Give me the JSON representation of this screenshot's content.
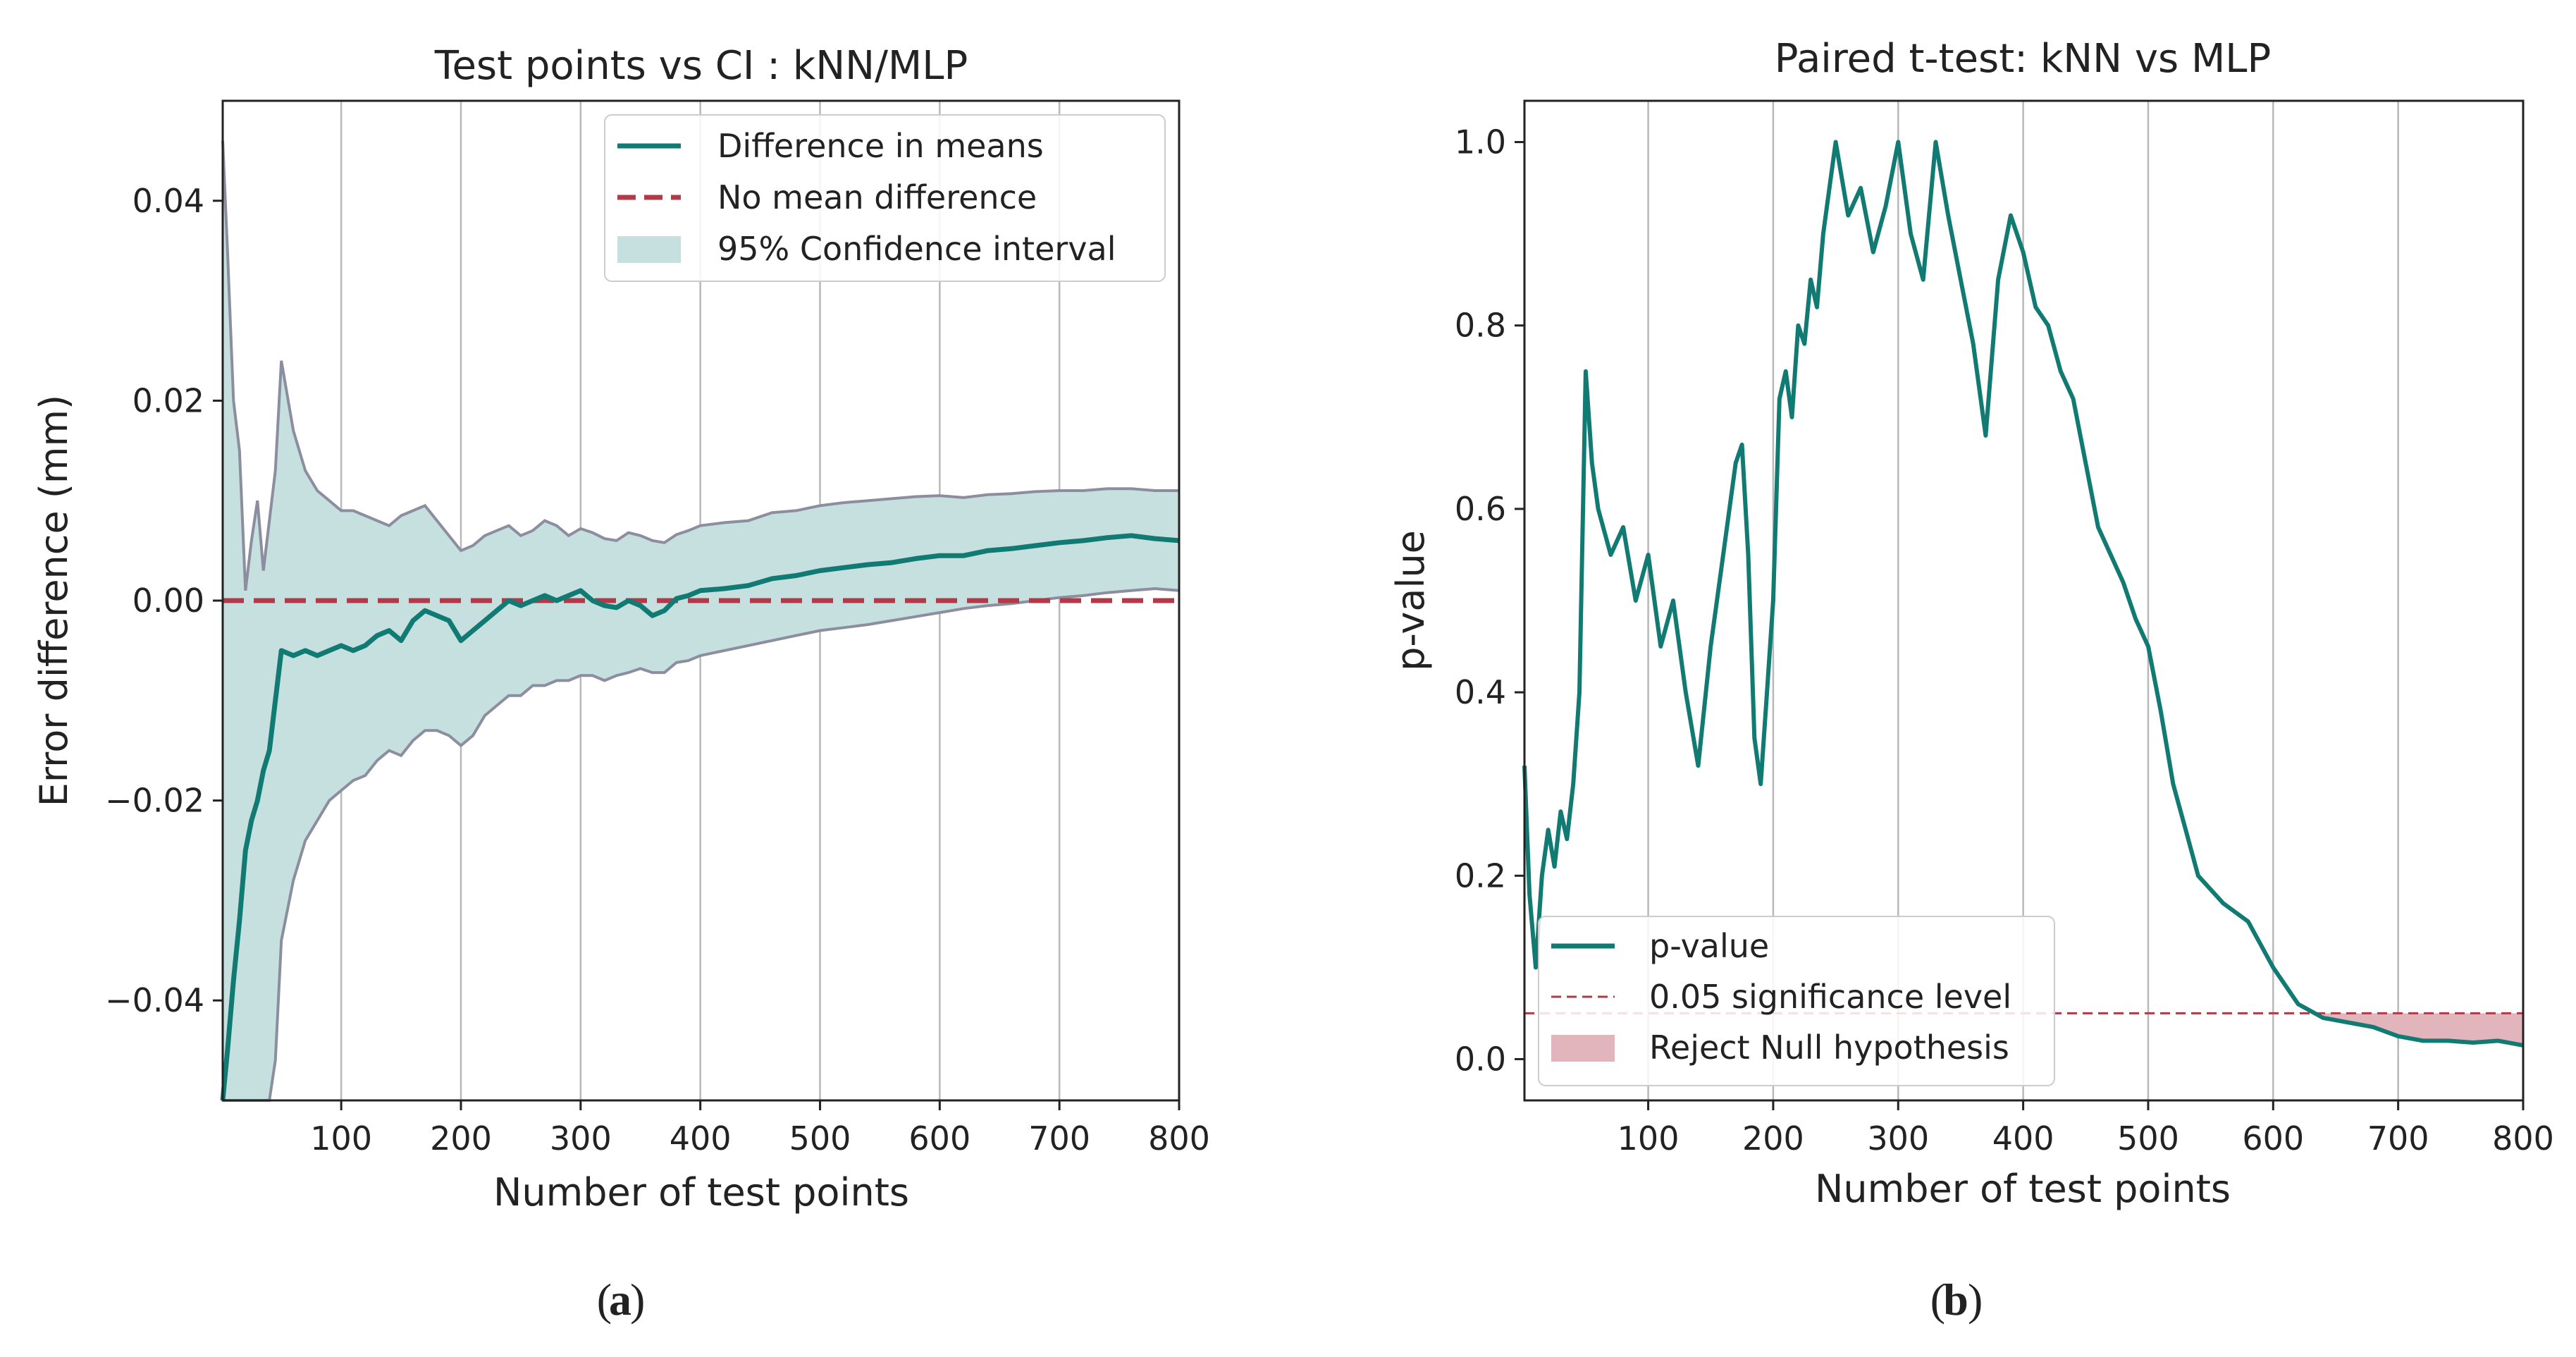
{
  "chart_data": [
    {
      "type": "line",
      "panel_label": "a",
      "title": "Test points vs CI : kNN/MLP",
      "xlabel": "Number of test points",
      "ylabel": "Error difference (mm)",
      "xlim": [
        1,
        800
      ],
      "ylim": [
        -0.05,
        0.05
      ],
      "x_ticks": [
        100,
        200,
        300,
        400,
        500,
        600,
        700,
        800
      ],
      "x_tick_labels": [
        "100",
        "200",
        "300",
        "400",
        "500",
        "600",
        "700",
        "800"
      ],
      "y_ticks": [
        -0.04,
        -0.02,
        0.0,
        0.02,
        0.04
      ],
      "y_tick_labels": [
        "−0.04",
        "−0.02",
        "0.00",
        "0.02",
        "0.04"
      ],
      "grid": "vertical",
      "legend_position": "top-right",
      "legend": [
        "Difference in means",
        "No mean difference",
        "95% Confidence interval"
      ],
      "colors": {
        "mean": "#107a73",
        "zero": "#b03a48",
        "ci_fill": "#c6e0e0",
        "ci_edge": "#8c8ea0"
      },
      "series": [
        {
          "name": "Difference in means",
          "x": [
            1,
            5,
            10,
            15,
            20,
            25,
            30,
            35,
            40,
            45,
            50,
            60,
            70,
            80,
            90,
            100,
            110,
            120,
            130,
            140,
            150,
            160,
            170,
            180,
            190,
            200,
            210,
            220,
            230,
            240,
            250,
            260,
            270,
            280,
            290,
            300,
            310,
            320,
            330,
            340,
            350,
            360,
            370,
            380,
            390,
            400,
            420,
            440,
            460,
            480,
            500,
            520,
            540,
            560,
            580,
            600,
            620,
            640,
            660,
            680,
            700,
            720,
            740,
            760,
            780,
            800
          ],
          "values": [
            -0.05,
            -0.045,
            -0.038,
            -0.032,
            -0.025,
            -0.022,
            -0.02,
            -0.017,
            -0.015,
            -0.01,
            -0.005,
            -0.0055,
            -0.005,
            -0.0055,
            -0.005,
            -0.0045,
            -0.005,
            -0.0045,
            -0.0035,
            -0.003,
            -0.004,
            -0.002,
            -0.001,
            -0.0015,
            -0.002,
            -0.004,
            -0.003,
            -0.002,
            -0.001,
            0.0,
            -0.0005,
            0.0,
            0.0005,
            0.0,
            0.0005,
            0.001,
            0.0,
            -0.0005,
            -0.0007,
            0.0,
            -0.0005,
            -0.0015,
            -0.001,
            0.0002,
            0.0005,
            0.001,
            0.0012,
            0.0015,
            0.0022,
            0.0025,
            0.003,
            0.0033,
            0.0036,
            0.0038,
            0.0042,
            0.0045,
            0.0045,
            0.005,
            0.0052,
            0.0055,
            0.0058,
            0.006,
            0.0063,
            0.0065,
            0.0062,
            0.006
          ]
        },
        {
          "name": "No mean difference",
          "value": 0.0
        },
        {
          "name": "95% Confidence interval",
          "x": [
            1,
            5,
            10,
            15,
            20,
            25,
            30,
            35,
            40,
            45,
            50,
            60,
            70,
            80,
            90,
            100,
            110,
            120,
            130,
            140,
            150,
            160,
            170,
            180,
            190,
            200,
            210,
            220,
            230,
            240,
            250,
            260,
            270,
            280,
            290,
            300,
            310,
            320,
            330,
            340,
            350,
            360,
            370,
            380,
            390,
            400,
            420,
            440,
            460,
            480,
            500,
            520,
            540,
            560,
            580,
            600,
            620,
            640,
            660,
            680,
            700,
            720,
            740,
            760,
            780,
            800
          ],
          "upper": [
            0.046,
            0.035,
            0.02,
            0.015,
            0.001,
            0.006,
            0.01,
            0.003,
            0.008,
            0.013,
            0.024,
            0.017,
            0.013,
            0.011,
            0.01,
            0.009,
            0.009,
            0.0085,
            0.008,
            0.0075,
            0.0085,
            0.009,
            0.0095,
            0.008,
            0.0065,
            0.005,
            0.0055,
            0.0065,
            0.007,
            0.0075,
            0.0065,
            0.007,
            0.008,
            0.0075,
            0.0065,
            0.0072,
            0.0068,
            0.0062,
            0.006,
            0.0068,
            0.0065,
            0.006,
            0.0058,
            0.0066,
            0.007,
            0.0075,
            0.0078,
            0.008,
            0.0088,
            0.009,
            0.0095,
            0.0098,
            0.01,
            0.0102,
            0.0104,
            0.0105,
            0.0103,
            0.0106,
            0.0107,
            0.0109,
            0.011,
            0.011,
            0.0112,
            0.0112,
            0.011,
            0.011
          ],
          "lower": [
            -0.05,
            -0.05,
            -0.05,
            -0.05,
            -0.05,
            -0.05,
            -0.05,
            -0.05,
            -0.05,
            -0.046,
            -0.034,
            -0.028,
            -0.024,
            -0.022,
            -0.02,
            -0.019,
            -0.018,
            -0.0175,
            -0.016,
            -0.015,
            -0.0155,
            -0.014,
            -0.013,
            -0.013,
            -0.0135,
            -0.0145,
            -0.0135,
            -0.0115,
            -0.0105,
            -0.0095,
            -0.0095,
            -0.0085,
            -0.0085,
            -0.008,
            -0.008,
            -0.0075,
            -0.0075,
            -0.008,
            -0.0075,
            -0.0072,
            -0.0068,
            -0.0072,
            -0.0072,
            -0.0062,
            -0.006,
            -0.0055,
            -0.005,
            -0.0045,
            -0.004,
            -0.0035,
            -0.003,
            -0.0027,
            -0.0024,
            -0.002,
            -0.0016,
            -0.0012,
            -0.0008,
            -0.0005,
            -0.0003,
            0.0,
            0.0003,
            0.0005,
            0.0008,
            0.001,
            0.0012,
            0.001
          ]
        }
      ]
    },
    {
      "type": "line",
      "panel_label": "b",
      "title": "Paired t-test: kNN vs MLP",
      "xlabel": "Number of test points",
      "ylabel": "p-value",
      "xlim": [
        1,
        800
      ],
      "ylim": [
        -0.045,
        1.045
      ],
      "x_ticks": [
        100,
        200,
        300,
        400,
        500,
        600,
        700,
        800
      ],
      "x_tick_labels": [
        "100",
        "200",
        "300",
        "400",
        "500",
        "600",
        "700",
        "800"
      ],
      "y_ticks": [
        0.0,
        0.2,
        0.4,
        0.6,
        0.8,
        1.0
      ],
      "y_tick_labels": [
        "0.0",
        "0.2",
        "0.4",
        "0.6",
        "0.8",
        "1.0"
      ],
      "grid": "vertical",
      "legend_position": "bottom-left",
      "legend": [
        "p-value",
        "0.05 significance level",
        "Reject Null hypothesis"
      ],
      "colors": {
        "pvalue": "#107a73",
        "threshold": "#b03a48",
        "reject_fill": "#e2b4bb"
      },
      "significance_level": 0.05,
      "series": [
        {
          "name": "p-value",
          "x": [
            1,
            5,
            10,
            15,
            20,
            25,
            30,
            35,
            40,
            45,
            50,
            55,
            60,
            70,
            80,
            90,
            100,
            110,
            120,
            130,
            140,
            150,
            160,
            170,
            175,
            180,
            185,
            190,
            195,
            200,
            205,
            210,
            215,
            220,
            225,
            230,
            235,
            240,
            245,
            250,
            260,
            270,
            280,
            290,
            300,
            310,
            320,
            330,
            340,
            350,
            360,
            370,
            380,
            390,
            400,
            410,
            420,
            430,
            440,
            450,
            460,
            470,
            480,
            490,
            500,
            510,
            520,
            530,
            540,
            560,
            580,
            600,
            620,
            640,
            660,
            680,
            700,
            720,
            740,
            760,
            780,
            800
          ],
          "values": [
            0.32,
            0.18,
            0.1,
            0.2,
            0.25,
            0.21,
            0.27,
            0.24,
            0.3,
            0.4,
            0.75,
            0.65,
            0.6,
            0.55,
            0.58,
            0.5,
            0.55,
            0.45,
            0.5,
            0.4,
            0.32,
            0.45,
            0.55,
            0.65,
            0.67,
            0.55,
            0.35,
            0.3,
            0.4,
            0.5,
            0.72,
            0.75,
            0.7,
            0.8,
            0.78,
            0.85,
            0.82,
            0.9,
            0.95,
            1.0,
            0.92,
            0.95,
            0.88,
            0.93,
            1.0,
            0.9,
            0.85,
            1.0,
            0.92,
            0.85,
            0.78,
            0.68,
            0.85,
            0.92,
            0.88,
            0.82,
            0.8,
            0.75,
            0.72,
            0.65,
            0.58,
            0.55,
            0.52,
            0.48,
            0.45,
            0.38,
            0.3,
            0.25,
            0.2,
            0.17,
            0.15,
            0.1,
            0.06,
            0.045,
            0.04,
            0.035,
            0.025,
            0.02,
            0.02,
            0.018,
            0.02,
            0.015
          ]
        },
        {
          "name": "0.05 significance level",
          "value": 0.05
        },
        {
          "name": "Reject Null hypothesis",
          "x_range": [
            630,
            800
          ]
        }
      ]
    }
  ]
}
